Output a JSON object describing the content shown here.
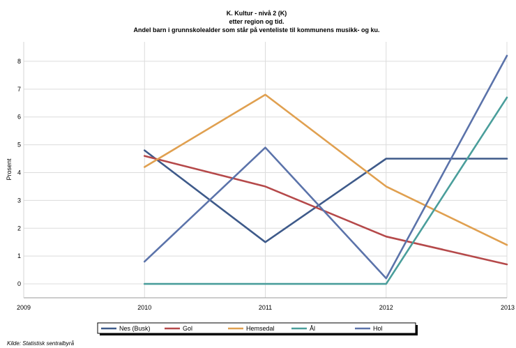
{
  "chart_data": {
    "type": "line",
    "title": "K. Kultur - nivå 2 (K)",
    "subtitle_lines": [
      "etter region og tid.",
      "Andel barn i grunnskolealder som står på venteliste til kommunens musikk- og ku."
    ],
    "xlabel": "",
    "ylabel": "Prosent",
    "x": [
      2009,
      2010,
      2011,
      2012,
      2013
    ],
    "x_tick_labels": [
      "2009",
      "2010",
      "2011",
      "2012",
      "2013"
    ],
    "xlim": [
      2009,
      2013
    ],
    "ylim": [
      -0.5,
      8.7
    ],
    "y_ticks": [
      0,
      1,
      2,
      3,
      4,
      5,
      6,
      7,
      8
    ],
    "y_tick_labels": [
      "0",
      "1",
      "2",
      "3",
      "4",
      "5",
      "6",
      "7",
      "8"
    ],
    "grid": true,
    "legend_position": "bottom",
    "series": [
      {
        "name": "Nes (Busk)",
        "color": "#3e5a8a",
        "x": [
          2010,
          2011,
          2012,
          2013
        ],
        "values": [
          4.8,
          1.5,
          4.5,
          4.5
        ]
      },
      {
        "name": "Gol",
        "color": "#b5494a",
        "x": [
          2010,
          2011,
          2012,
          2013
        ],
        "values": [
          4.6,
          3.5,
          1.7,
          0.7
        ]
      },
      {
        "name": "Hemsedal",
        "color": "#e0a050",
        "x": [
          2010,
          2011,
          2012,
          2013
        ],
        "values": [
          4.2,
          6.8,
          3.5,
          1.4
        ]
      },
      {
        "name": "Ål",
        "color": "#4a9e9b",
        "x": [
          2010,
          2011,
          2012,
          2013
        ],
        "values": [
          0.0,
          0.0,
          0.0,
          6.7
        ]
      },
      {
        "name": "Hol",
        "color": "#5b73aa",
        "x": [
          2010,
          2011,
          2012,
          2013
        ],
        "values": [
          0.8,
          4.9,
          0.2,
          8.2
        ]
      }
    ]
  },
  "source": "Kilde: Statistisk sentralbyrå"
}
